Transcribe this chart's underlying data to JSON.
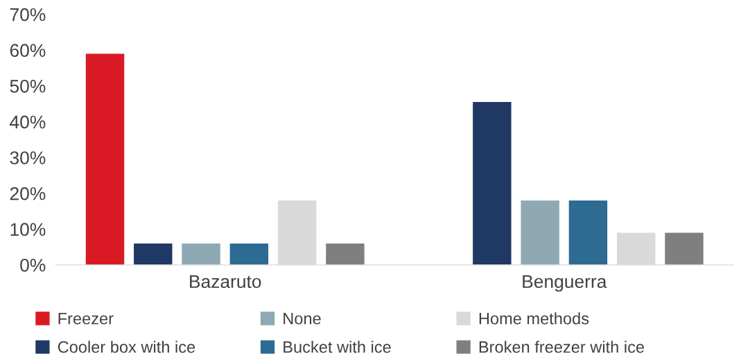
{
  "chart_data": {
    "type": "bar",
    "categories": [
      "Bazaruto",
      "Benguerra"
    ],
    "series": [
      {
        "name": "Freezer",
        "color": "#d91a25",
        "values": [
          59,
          0
        ]
      },
      {
        "name": "Cooler box with ice",
        "color": "#1f3864",
        "values": [
          6,
          45.5
        ]
      },
      {
        "name": "None",
        "color": "#8ea9b4",
        "values": [
          6,
          18
        ]
      },
      {
        "name": "Bucket with ice",
        "color": "#2e6b93",
        "values": [
          6,
          18
        ]
      },
      {
        "name": "Home methods",
        "color": "#d9d9d9",
        "values": [
          18,
          9
        ]
      },
      {
        "name": "Broken freezer with ice",
        "color": "#7f7f7f",
        "values": [
          6,
          9
        ]
      }
    ],
    "ylim": [
      0,
      70
    ],
    "yticks": [
      {
        "value": 0,
        "label": "0%"
      },
      {
        "value": 10,
        "label": "10%"
      },
      {
        "value": 20,
        "label": "20%"
      },
      {
        "value": 30,
        "label": "30%"
      },
      {
        "value": 40,
        "label": "40%"
      },
      {
        "value": 50,
        "label": "50%"
      },
      {
        "value": 60,
        "label": "60%"
      },
      {
        "value": 70,
        "label": "70%"
      }
    ],
    "grid": false,
    "legend": "bottom"
  }
}
